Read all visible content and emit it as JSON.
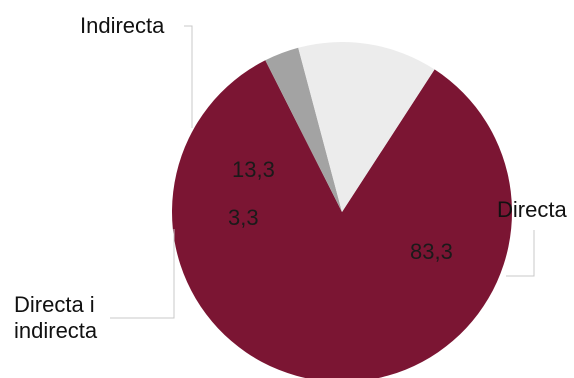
{
  "chart_data": {
    "type": "pie",
    "slices": [
      {
        "label": "Directa",
        "value": 83.3,
        "value_label": "83,3",
        "color": "#7B1533"
      },
      {
        "label": "Directa i indirecta",
        "value": 3.3,
        "value_label": "3,3",
        "color": "#A3A3A3"
      },
      {
        "label": "Indirecta",
        "value": 13.3,
        "value_label": "13,3",
        "color": "#ECECEC"
      }
    ],
    "start_angle_deg": -57,
    "direction": "clockwise",
    "legend": "none",
    "leader_line_color": "#C8C8C8"
  }
}
